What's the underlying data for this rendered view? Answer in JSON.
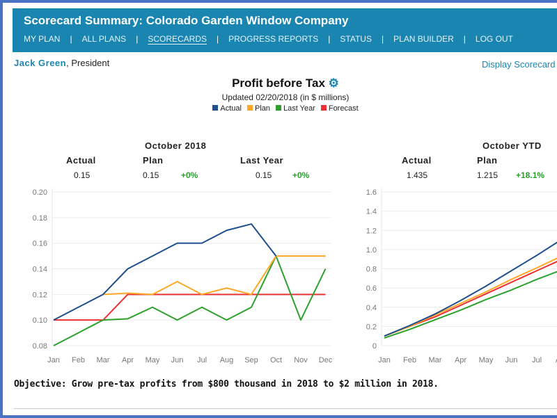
{
  "header": {
    "title": "Scorecard Summary: Colorado Garden Window Company",
    "nav": [
      "MY PLAN",
      "ALL PLANS",
      "SCORECARDS",
      "PROGRESS REPORTS",
      "STATUS",
      "PLAN BUILDER",
      "LOG OUT"
    ],
    "active_nav": "SCORECARDS"
  },
  "user": {
    "name": "Jack Green",
    "role": ", President"
  },
  "display_link": "Display Scorecard",
  "scorecard": {
    "title": "Profit before Tax",
    "gear_icon": "gear-icon",
    "updated": "Updated 02/20/2018 (in $ millions)",
    "legend": [
      {
        "label": "Actual",
        "color": "#1f4e8c"
      },
      {
        "label": "Plan",
        "color": "#ffa726"
      },
      {
        "label": "Last Year",
        "color": "#2ca02c"
      },
      {
        "label": "Forecast",
        "color": "#f03030"
      }
    ]
  },
  "month": {
    "heading": "October 2018",
    "actual_label": "Actual",
    "actual": "0.15",
    "plan_label": "Plan",
    "plan": "0.15",
    "plan_pct": "+0%",
    "ly_label": "Last Year",
    "ly": "0.15",
    "ly_pct": "+0%"
  },
  "ytd": {
    "heading": "October YTD",
    "actual_label": "Actual",
    "actual": "1.435",
    "plan_label": "Plan",
    "plan": "1.215",
    "plan_pct": "+18.1%"
  },
  "objective": "Objective: Grow pre-tax profits from $800 thousand in 2018 to $2 million in 2018.",
  "chart_data": [
    {
      "type": "line",
      "categories": [
        "Jan",
        "Feb",
        "Mar",
        "Apr",
        "May",
        "Jun",
        "Jul",
        "Aug",
        "Sep",
        "Oct",
        "Nov",
        "Dec"
      ],
      "ylim": [
        0.08,
        0.2
      ],
      "yticks": [
        "0.08",
        "0.10",
        "0.12",
        "0.14",
        "0.16",
        "0.18",
        "0.20"
      ],
      "grid": true,
      "series": [
        {
          "name": "Forecast",
          "color": "#f03030",
          "values": [
            0.1,
            0.1,
            0.1,
            0.12,
            0.12,
            0.12,
            0.12,
            0.12,
            0.12,
            0.12,
            0.12,
            0.12
          ]
        },
        {
          "name": "Last Year",
          "color": "#2ca02c",
          "values": [
            0.08,
            0.09,
            0.1,
            0.101,
            0.11,
            0.1,
            0.11,
            0.1,
            0.11,
            0.15,
            0.1,
            0.14
          ]
        },
        {
          "name": "Plan",
          "color": "#ffa726",
          "values": [
            null,
            null,
            0.12,
            0.121,
            0.12,
            0.13,
            0.12,
            0.125,
            0.12,
            0.15,
            0.15,
            0.15
          ]
        },
        {
          "name": "Actual",
          "color": "#1f4e8c",
          "values": [
            0.1,
            0.11,
            0.12,
            0.14,
            0.15,
            0.16,
            0.16,
            0.17,
            0.175,
            0.15,
            null,
            null
          ]
        }
      ]
    },
    {
      "type": "line",
      "categories": [
        "Jan",
        "Feb",
        "Mar",
        "Apr",
        "May",
        "Jun",
        "Jul",
        "Aug"
      ],
      "ylim": [
        0,
        1.6
      ],
      "yticks": [
        "0",
        "0.2",
        "0.4",
        "0.6",
        "0.8",
        "1.0",
        "1.2",
        "1.4",
        "1.6"
      ],
      "grid": true,
      "series": [
        {
          "name": "Last Year",
          "color": "#2ca02c",
          "values": [
            0.08,
            0.17,
            0.27,
            0.37,
            0.48,
            0.58,
            0.69,
            0.79
          ]
        },
        {
          "name": "Forecast",
          "color": "#f03030",
          "values": [
            0.1,
            0.2,
            0.3,
            0.42,
            0.54,
            0.66,
            0.78,
            0.9
          ]
        },
        {
          "name": "Plan",
          "color": "#ffa726",
          "values": [
            0.1,
            0.2,
            0.32,
            0.44,
            0.56,
            0.69,
            0.81,
            0.935
          ]
        },
        {
          "name": "Actual",
          "color": "#1f4e8c",
          "values": [
            0.1,
            0.21,
            0.33,
            0.47,
            0.62,
            0.78,
            0.94,
            1.11
          ]
        }
      ]
    }
  ]
}
